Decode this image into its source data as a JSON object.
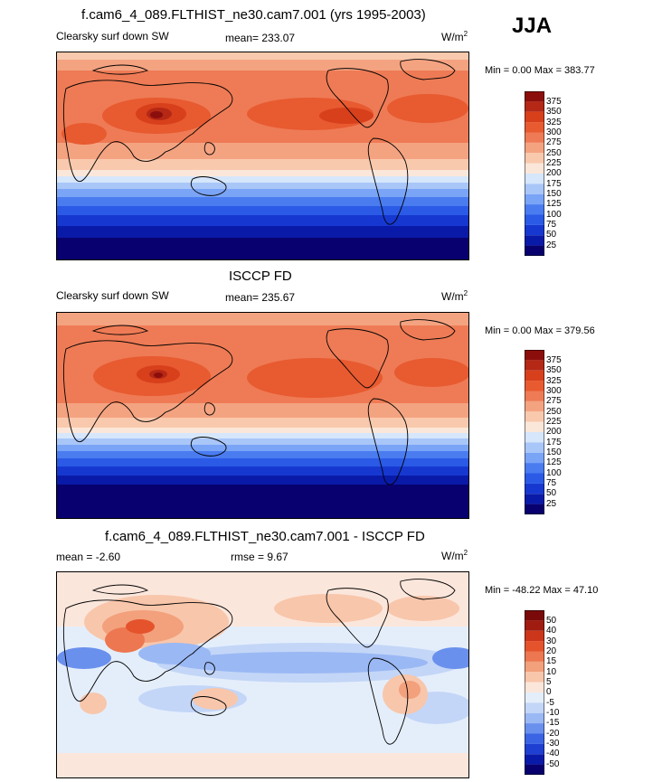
{
  "season": "JJA",
  "panels": [
    {
      "title": "f.cam6_4_089.FLTHIST_ne30.cam7.001 (yrs 1995-2003)",
      "variable": "Clearsky surf down SW",
      "mean_text": "mean= 233.07",
      "units_base": "W/m",
      "units_exp": "2",
      "minmax": "Min =    0.00 Max = 383.77",
      "colorbar_labels": [
        "375",
        "350",
        "325",
        "300",
        "275",
        "250",
        "225",
        "200",
        "175",
        "150",
        "125",
        "100",
        "75",
        "50",
        "25"
      ]
    },
    {
      "title": "ISCCP FD",
      "variable": "Clearsky surf down SW",
      "mean_text": "mean= 235.67",
      "units_base": "W/m",
      "units_exp": "2",
      "minmax": "Min =    0.00 Max = 379.56",
      "colorbar_labels": [
        "375",
        "350",
        "325",
        "300",
        "275",
        "250",
        "225",
        "200",
        "175",
        "150",
        "125",
        "100",
        "75",
        "50",
        "25"
      ]
    },
    {
      "title": "f.cam6_4_089.FLTHIST_ne30.cam7.001 - ISCCP FD",
      "mean_text": "mean =  -2.60",
      "rmse_text": "rmse =    9.67",
      "units_base": "W/m",
      "units_exp": "2",
      "minmax": "Min = -48.22 Max =  47.10",
      "colorbar_labels": [
        "50",
        "40",
        "30",
        "20",
        "15",
        "10",
        "5",
        "0",
        "-5",
        "-10",
        "-15",
        "-20",
        "-30",
        "-40",
        "-50"
      ]
    }
  ],
  "colors": {
    "abs_scale": [
      "#08006e",
      "#0a1aa8",
      "#1638d0",
      "#2a5ae6",
      "#4a7cf0",
      "#7aa4f6",
      "#a9c6f8",
      "#d6e6fb",
      "#fbe7d9",
      "#f9c9ad",
      "#f4a381",
      "#ee7b55",
      "#e85a30",
      "#d8401c",
      "#b52815",
      "#8c0e0c"
    ],
    "diff_scale": [
      "#08006e",
      "#0a1aa8",
      "#1f3fd2",
      "#3a64e4",
      "#6a90ee",
      "#9ab8f4",
      "#c3d6f7",
      "#e4eefb",
      "#fbe6db",
      "#f8c6ab",
      "#f3a07c",
      "#ec7750",
      "#e4532c",
      "#cc361a",
      "#a01c10",
      "#7a0a0a"
    ]
  }
}
